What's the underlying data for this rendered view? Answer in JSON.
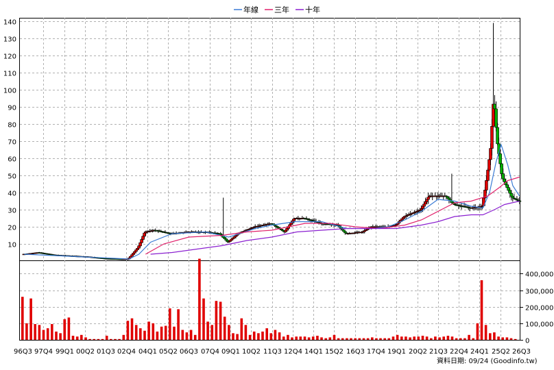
{
  "chart_data": [
    {
      "type": "candlestick",
      "legend": [
        {
          "name": "年線",
          "color": "#3a7bd5"
        },
        {
          "name": "三年",
          "color": "#e0206a"
        },
        {
          "name": "十年",
          "color": "#8a1fd0"
        }
      ],
      "legend_placement": "top-center",
      "ylim": [
        0,
        140
      ],
      "yticks": [
        10,
        20,
        30,
        40,
        50,
        60,
        70,
        80,
        90,
        100,
        110,
        120,
        130,
        140
      ],
      "grid": true,
      "colors": {
        "up": "#e00000",
        "down": "#00b000",
        "wick": "#000000",
        "grid": "#b0b0b0"
      },
      "price_path": [
        [
          1996.6,
          4
        ],
        [
          1997.5,
          5
        ],
        [
          1998.5,
          3.5
        ],
        [
          1999.5,
          3
        ],
        [
          2000.5,
          2.5
        ],
        [
          2001.5,
          1.5
        ],
        [
          2002.5,
          1.2
        ],
        [
          2002.9,
          1.2
        ],
        [
          2003.5,
          8
        ],
        [
          2003.9,
          17
        ],
        [
          2004.5,
          18
        ],
        [
          2005.5,
          16
        ],
        [
          2006.5,
          17
        ],
        [
          2007.5,
          17
        ],
        [
          2008.4,
          16
        ],
        [
          2008.9,
          11
        ],
        [
          2009.5,
          16
        ],
        [
          2010.5,
          20
        ],
        [
          2011.5,
          22
        ],
        [
          2012.3,
          17
        ],
        [
          2012.9,
          25
        ],
        [
          2013.5,
          25
        ],
        [
          2014.5,
          22
        ],
        [
          2015.5,
          21
        ],
        [
          2016.0,
          16
        ],
        [
          2017.0,
          17
        ],
        [
          2017.5,
          20
        ],
        [
          2018.5,
          20
        ],
        [
          2019.0,
          21
        ],
        [
          2019.5,
          26
        ],
        [
          2020.5,
          30
        ],
        [
          2021.0,
          38
        ],
        [
          2021.5,
          38
        ],
        [
          2022.0,
          38
        ],
        [
          2022.5,
          33
        ],
        [
          2023.5,
          31
        ],
        [
          2024.2,
          32
        ],
        [
          2024.4,
          43
        ],
        [
          2024.7,
          65
        ],
        [
          2024.9,
          96
        ],
        [
          2025.1,
          70
        ],
        [
          2025.4,
          49
        ],
        [
          2025.7,
          43
        ],
        [
          2026.0,
          37
        ],
        [
          2026.4,
          35
        ]
      ],
      "highs": [
        {
          "x": 2008.55,
          "y": 37
        },
        {
          "x": 2022.3,
          "y": 51
        },
        {
          "x": 2024.8,
          "y": 139
        }
      ],
      "series": [
        {
          "name": "年線",
          "points": [
            [
              1996.6,
              4
            ],
            [
              2002.9,
              1.2
            ],
            [
              2003.5,
              4
            ],
            [
              2004.2,
              11
            ],
            [
              2005.5,
              16
            ],
            [
              2007.5,
              17
            ],
            [
              2008.9,
              14
            ],
            [
              2010.5,
              19
            ],
            [
              2011.5,
              21
            ],
            [
              2012.9,
              23
            ],
            [
              2014.5,
              23
            ],
            [
              2016.0,
              19
            ],
            [
              2017.5,
              19
            ],
            [
              2018.5,
              20
            ],
            [
              2019.5,
              24
            ],
            [
              2020.5,
              29
            ],
            [
              2021.5,
              36
            ],
            [
              2022.5,
              35
            ],
            [
              2023.5,
              32
            ],
            [
              2024.2,
              31
            ],
            [
              2024.6,
              40
            ],
            [
              2025.0,
              58
            ],
            [
              2025.3,
              68
            ],
            [
              2025.7,
              56
            ],
            [
              2026.0,
              44
            ],
            [
              2026.4,
              38
            ]
          ]
        },
        {
          "name": "三年",
          "points": [
            [
              2003.9,
              4
            ],
            [
              2005.0,
              10
            ],
            [
              2006.5,
              14
            ],
            [
              2008.5,
              15
            ],
            [
              2010.0,
              17
            ],
            [
              2011.5,
              18
            ],
            [
              2013.5,
              22
            ],
            [
              2015.0,
              22
            ],
            [
              2016.5,
              20
            ],
            [
              2018.0,
              19
            ],
            [
              2019.5,
              21
            ],
            [
              2020.5,
              24
            ],
            [
              2021.5,
              29
            ],
            [
              2022.5,
              34
            ],
            [
              2023.5,
              35
            ],
            [
              2024.5,
              38
            ],
            [
              2025.2,
              43
            ],
            [
              2025.7,
              47
            ],
            [
              2026.4,
              49
            ]
          ]
        },
        {
          "name": "十年",
          "points": [
            [
              2004.2,
              4
            ],
            [
              2005.5,
              5
            ],
            [
              2007.0,
              7
            ],
            [
              2008.5,
              9
            ],
            [
              2010.0,
              12
            ],
            [
              2011.5,
              14
            ],
            [
              2013.0,
              17
            ],
            [
              2014.5,
              18
            ],
            [
              2016.0,
              19
            ],
            [
              2017.5,
              19
            ],
            [
              2019.0,
              19
            ],
            [
              2020.5,
              21
            ],
            [
              2021.5,
              23
            ],
            [
              2022.5,
              26
            ],
            [
              2023.5,
              27
            ],
            [
              2024.2,
              27
            ],
            [
              2024.9,
              30
            ],
            [
              2025.5,
              33
            ],
            [
              2026.4,
              35
            ]
          ]
        }
      ]
    },
    {
      "type": "bar",
      "ylim": [
        0,
        480000
      ],
      "yticks": [
        "0",
        "100,000",
        "200,000",
        "300,000",
        "400,000"
      ],
      "ytick_values": [
        0,
        100000,
        200000,
        300000,
        400000
      ],
      "color": "#e00000",
      "values": [
        260,
        100,
        250,
        95,
        90,
        60,
        70,
        95,
        50,
        40,
        125,
        135,
        25,
        20,
        30,
        15,
        5,
        5,
        5,
        5,
        25,
        5,
        5,
        5,
        30,
        115,
        130,
        90,
        70,
        55,
        110,
        100,
        50,
        80,
        85,
        190,
        80,
        185,
        60,
        45,
        60,
        30,
        490,
        250,
        110,
        90,
        235,
        230,
        140,
        90,
        40,
        35,
        130,
        90,
        30,
        50,
        40,
        50,
        70,
        40,
        60,
        45,
        20,
        30,
        15,
        20,
        20,
        20,
        15,
        20,
        25,
        15,
        10,
        15,
        30,
        10,
        10,
        10,
        10,
        10,
        10,
        10,
        10,
        15,
        10,
        10,
        10,
        10,
        20,
        30,
        20,
        20,
        15,
        20,
        20,
        25,
        20,
        10,
        20,
        15,
        20,
        25,
        20,
        10,
        10,
        10,
        30,
        10,
        100,
        360,
        90,
        40,
        45,
        20,
        15,
        15,
        10,
        5
      ]
    }
  ],
  "x_axis": {
    "ticks": [
      "96Q3",
      "97Q4",
      "99Q1",
      "00Q2",
      "01Q3",
      "02Q4",
      "04Q1",
      "05Q2",
      "06Q3",
      "07Q4",
      "09Q1",
      "10Q2",
      "11Q3",
      "12Q4",
      "14Q1",
      "15Q2",
      "16Q3",
      "17Q4",
      "19Q1",
      "20Q2",
      "21Q3",
      "22Q4",
      "24Q1",
      "25Q2",
      "26Q3"
    ]
  },
  "source_label": "資料日期: 09/24  (Goodinfo.tw)"
}
